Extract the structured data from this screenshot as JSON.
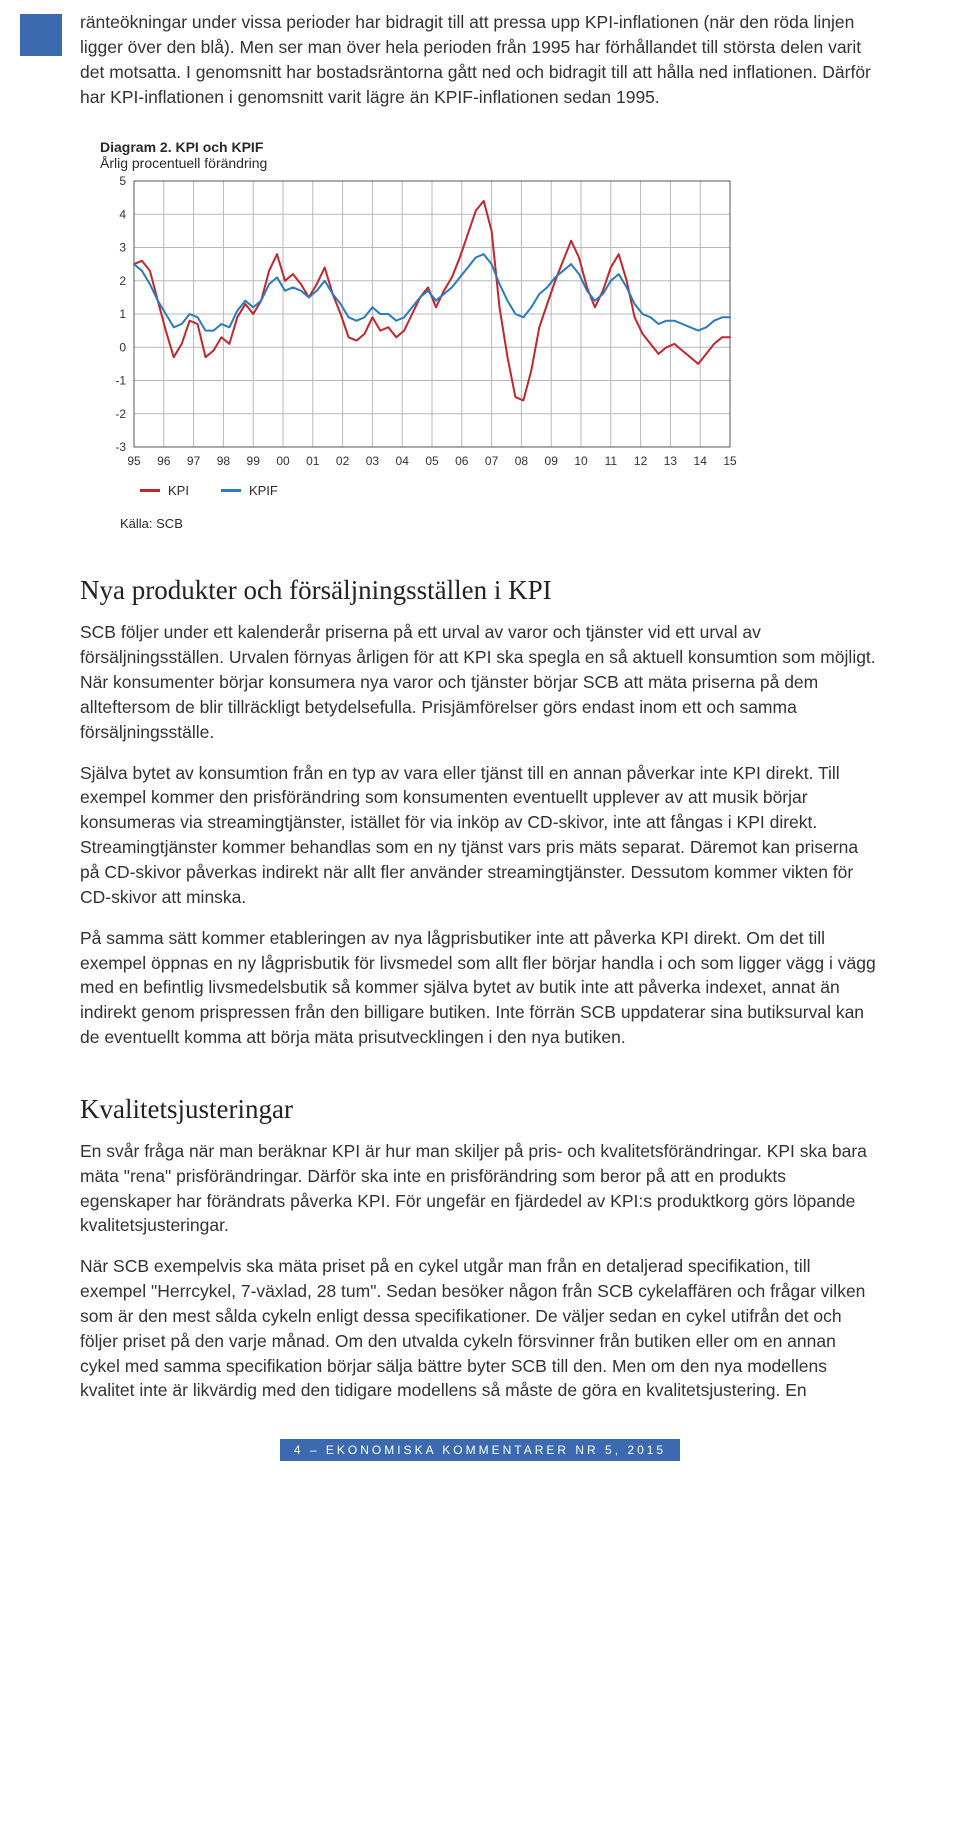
{
  "intro": {
    "text": "ränteökningar under vissa perioder har bidragit till att pressa upp KPI-inflationen (när den röda linjen ligger över den blå). Men ser man över hela perioden från 1995 har förhållandet till största delen varit det motsatta. I genomsnitt har bostadsräntorna gått ned och bidragit till att hålla ned inflationen. Därför har KPI-inflationen i genomsnitt varit lägre än KPIF-inflationen sedan 1995."
  },
  "chart": {
    "title_bold": "Diagram 2. KPI och KPIF",
    "subtitle": "Årlig procentuell förändring",
    "type": "line",
    "ylim": [
      -3,
      5
    ],
    "ytick_step": 1,
    "x_labels": [
      "95",
      "96",
      "97",
      "98",
      "99",
      "00",
      "01",
      "02",
      "03",
      "04",
      "05",
      "06",
      "07",
      "08",
      "09",
      "10",
      "11",
      "12",
      "13",
      "14",
      "15"
    ],
    "grid_color": "#b8b8b8",
    "background_color": "#ffffff",
    "axis_color": "#555555",
    "line_width": 2,
    "label_fontsize": 12,
    "series": [
      {
        "name": "KPI",
        "color": "#c1272d",
        "values": [
          2.5,
          2.6,
          2.3,
          1.4,
          0.5,
          -0.3,
          0.1,
          0.8,
          0.7,
          -0.3,
          -0.1,
          0.3,
          0.1,
          0.9,
          1.3,
          1.0,
          1.4,
          2.3,
          2.8,
          2.0,
          2.2,
          1.9,
          1.5,
          1.9,
          2.4,
          1.6,
          1.0,
          0.3,
          0.2,
          0.4,
          0.9,
          0.5,
          0.6,
          0.3,
          0.5,
          1.0,
          1.5,
          1.8,
          1.2,
          1.7,
          2.1,
          2.7,
          3.4,
          4.1,
          4.4,
          3.5,
          1.2,
          -0.3,
          -1.5,
          -1.6,
          -0.7,
          0.6,
          1.3,
          2.0,
          2.6,
          3.2,
          2.7,
          1.8,
          1.2,
          1.7,
          2.4,
          2.8,
          2.0,
          0.9,
          0.4,
          0.1,
          -0.2,
          0.0,
          0.1,
          -0.1,
          -0.3,
          -0.5,
          -0.2,
          0.1,
          0.3,
          0.3
        ]
      },
      {
        "name": "KPIF",
        "color": "#2b7bbd",
        "values": [
          2.5,
          2.3,
          1.9,
          1.4,
          1.0,
          0.6,
          0.7,
          1.0,
          0.9,
          0.5,
          0.5,
          0.7,
          0.6,
          1.1,
          1.4,
          1.2,
          1.4,
          1.9,
          2.1,
          1.7,
          1.8,
          1.7,
          1.5,
          1.7,
          2.0,
          1.6,
          1.3,
          0.9,
          0.8,
          0.9,
          1.2,
          1.0,
          1.0,
          0.8,
          0.9,
          1.2,
          1.5,
          1.7,
          1.4,
          1.6,
          1.8,
          2.1,
          2.4,
          2.7,
          2.8,
          2.5,
          1.9,
          1.4,
          1.0,
          0.9,
          1.2,
          1.6,
          1.8,
          2.1,
          2.3,
          2.5,
          2.2,
          1.7,
          1.4,
          1.6,
          2.0,
          2.2,
          1.8,
          1.3,
          1.0,
          0.9,
          0.7,
          0.8,
          0.8,
          0.7,
          0.6,
          0.5,
          0.6,
          0.8,
          0.9,
          0.9
        ]
      }
    ],
    "legend": {
      "label_kpi": "KPI",
      "label_kpif": "KPIF"
    },
    "source": "Källa: SCB"
  },
  "section1": {
    "heading": "Nya produkter och försäljningsställen i KPI",
    "p1": "SCB följer under ett kalenderår priserna på ett urval av varor och tjänster vid ett urval av försäljningsställen. Urvalen förnyas årligen för att KPI ska spegla en så aktuell konsumtion som möjligt. När konsumenter börjar konsumera nya varor och tjänster börjar SCB att mäta priserna på dem allteftersom de blir tillräckligt betydelsefulla. Prisjämförelser görs endast inom ett och samma försäljningsställe.",
    "p2": "Själva bytet av konsumtion från en typ av vara eller tjänst till en annan påverkar inte KPI direkt. Till exempel kommer den prisförändring som konsumenten eventuellt upplever av att musik börjar konsumeras via streamingtjänster, istället för via inköp av CD-skivor, inte att fångas i KPI direkt. Streamingtjänster kommer behandlas som en ny tjänst vars pris mäts separat. Däremot kan priserna på CD-skivor påverkas indirekt när allt fler använder streamingtjänster. Dessutom kommer vikten för CD-skivor att minska.",
    "p3": "På samma sätt kommer etableringen av nya lågprisbutiker inte att påverka KPI direkt. Om det till exempel öppnas en ny lågprisbutik för livsmedel som allt fler börjar handla i och som ligger vägg i vägg med en befintlig livsmedelsbutik så kommer själva bytet av butik inte att påverka indexet, annat än indirekt genom prispressen från den billigare butiken. Inte förrän SCB uppdaterar sina butiksurval kan de eventuellt komma att börja mäta prisutvecklingen i den nya butiken."
  },
  "section2": {
    "heading": "Kvalitetsjusteringar",
    "p1": "En svår fråga när man beräknar KPI är hur man skiljer på pris- och kvalitetsförändringar. KPI ska bara mäta \"rena\" prisförändringar. Därför ska inte en prisförändring som beror på att en produkts egenskaper har förändrats påverka KPI. För ungefär en fjärdedel av KPI:s produktkorg görs löpande kvalitetsjusteringar.",
    "p2": "När SCB exempelvis ska mäta priset på en cykel utgår man från en detaljerad specifikation, till exempel \"Herrcykel, 7-växlad, 28 tum\". Sedan besöker någon från SCB cykelaffären och frågar vilken som är den mest sålda cykeln enligt dessa specifikationer. De väljer sedan en cykel utifrån det och följer priset på den varje månad. Om den utvalda cykeln försvinner från butiken eller om en annan cykel med samma specifikation börjar sälja bättre byter SCB till den. Men om den nya modellens kvalitet inte är likvärdig med den tidigare modellens så måste de göra en kvalitetsjustering. En"
  },
  "footer": {
    "text": "4 – EKONOMISKA KOMMENTARER NR 5, 2015"
  },
  "colors": {
    "brand_blue": "#3b6ab0"
  }
}
